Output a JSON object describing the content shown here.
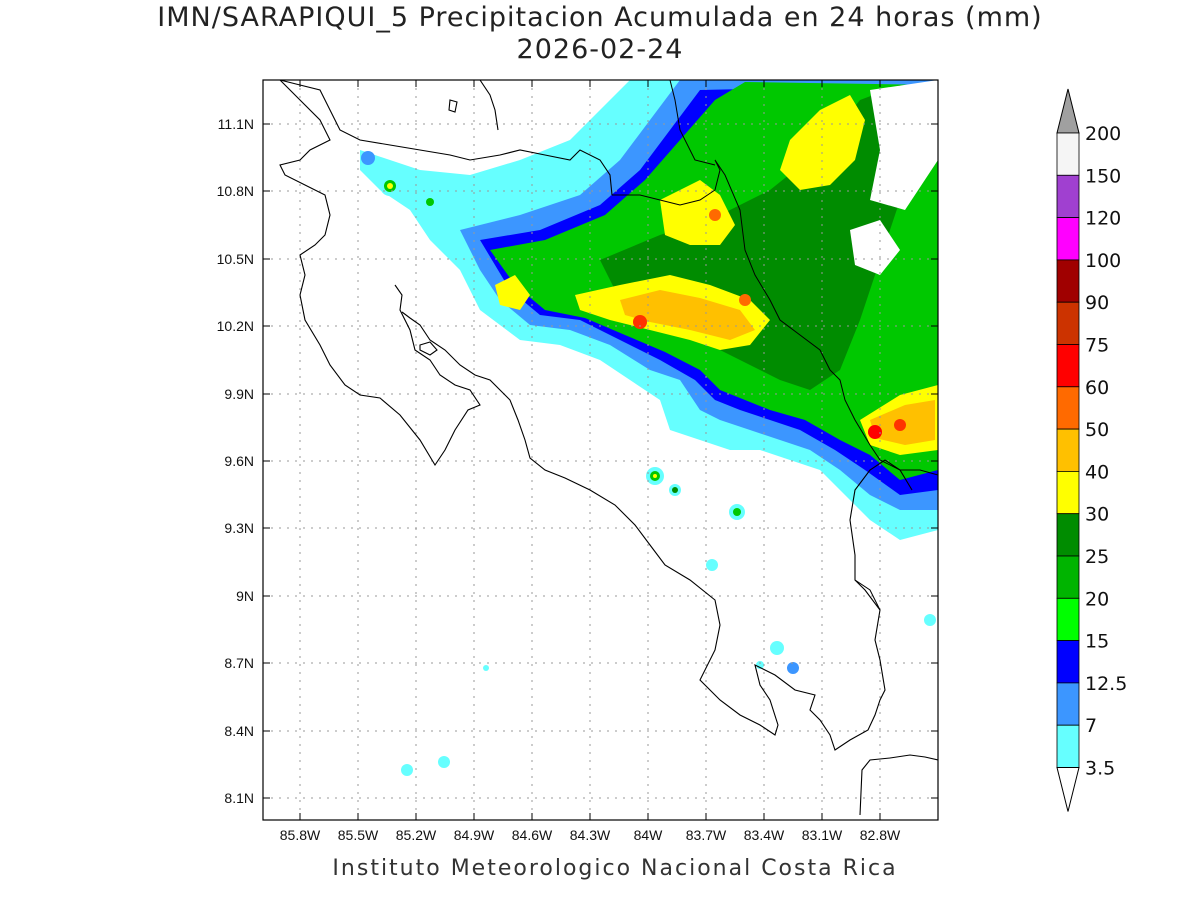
{
  "title_line1": "IMN/SARAPIQUI_5 Precipitacion Acumulada en 24 horas (mm)",
  "title_line2": "2026-02-24",
  "footer": "Instituto Meteorologico Nacional Costa Rica",
  "map": {
    "lat_ticks": [
      "11.1N",
      "10.8N",
      "10.5N",
      "10.2N",
      "9.9N",
      "9.6N",
      "9.3N",
      "9N",
      "8.7N",
      "8.4N",
      "8.1N"
    ],
    "lon_ticks": [
      "85.8W",
      "85.5W",
      "85.2W",
      "84.9W",
      "84.6W",
      "84.3W",
      "84W",
      "83.7W",
      "83.4W",
      "83.1W",
      "82.8W"
    ],
    "grid": true
  },
  "colorbar": {
    "labels": [
      "200",
      "150",
      "120",
      "100",
      "90",
      "75",
      "60",
      "50",
      "40",
      "30",
      "25",
      "20",
      "15",
      "12.5",
      "7",
      "3.5"
    ],
    "colors": [
      "#f5f5f5",
      "#a040d0",
      "#ff00ff",
      "#a00000",
      "#cc3300",
      "#ff0000",
      "#ff6a00",
      "#ffc000",
      "#ffff00",
      "#008c00",
      "#00b400",
      "#00ff00",
      "#0000ff",
      "#3c96ff",
      "#66ffff"
    ],
    "over_color": "#a0a0a0",
    "under_color": "#ffffff"
  }
}
